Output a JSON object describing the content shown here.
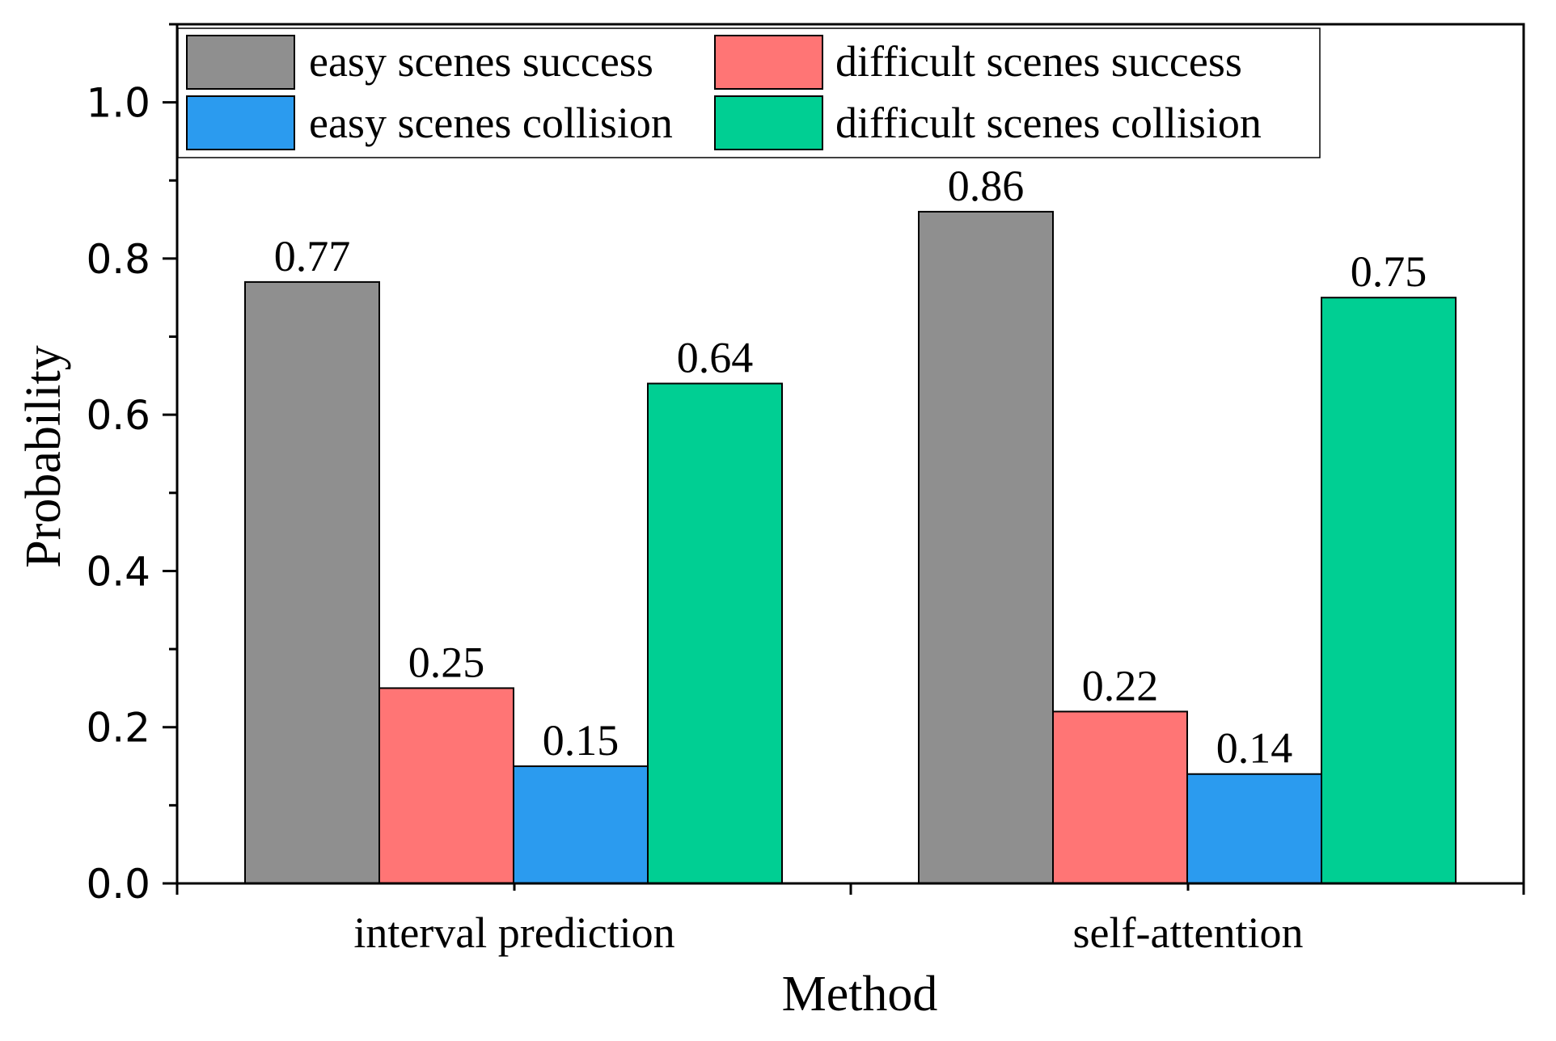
{
  "chart_data": {
    "type": "bar",
    "title": "",
    "xlabel": "Method",
    "ylabel": "Probability",
    "ylim": [
      0,
      1.1
    ],
    "yticks": [
      "0.0",
      "0.2",
      "0.4",
      "0.6",
      "0.8",
      "1.0"
    ],
    "categories": [
      "interval prediction",
      "self-attention"
    ],
    "grid": false,
    "legend_position": "top",
    "series": [
      {
        "name": "easy scenes success",
        "color": "#8f8f8f",
        "values": [
          0.77,
          0.86
        ],
        "labels": [
          "0.77",
          "0.86"
        ]
      },
      {
        "name": "difficult scenes success",
        "color": "#ff7575",
        "values": [
          0.25,
          0.22
        ],
        "labels": [
          "0.25",
          "0.22"
        ]
      },
      {
        "name": "easy scenes collision",
        "color": "#2b9bef",
        "values": [
          0.15,
          0.14
        ],
        "labels": [
          "0.15",
          "0.14"
        ]
      },
      {
        "name": "difficult scenes collision",
        "color": "#00cf93",
        "values": [
          0.64,
          0.75
        ],
        "labels": [
          "0.64",
          "0.75"
        ]
      }
    ]
  }
}
